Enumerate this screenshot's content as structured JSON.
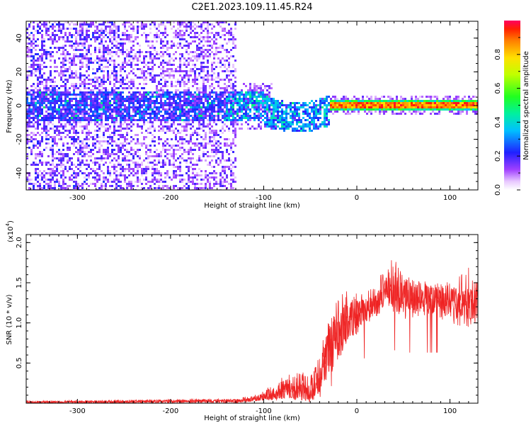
{
  "title": "C2E1.2023.109.11.45.R24",
  "colors": {
    "snr_line": "#ee2222",
    "axis": "#000000"
  },
  "chart_data": [
    {
      "type": "heatmap",
      "name": "spectrogram",
      "xlabel": "Height of straight line (km)",
      "ylabel": "Frequency (Hz)",
      "xlim": [
        -355,
        130
      ],
      "ylim": [
        -50,
        50
      ],
      "xticks": [
        -300,
        -200,
        -100,
        0,
        100
      ],
      "xtick_labels": [
        "-300",
        "-200",
        "-100",
        "0",
        "100"
      ],
      "yticks": [
        -40,
        -20,
        0,
        20,
        40
      ],
      "ytick_labels": [
        "-40",
        "-20",
        "0",
        "20",
        "40"
      ],
      "colorbar": {
        "label": "Normalized spectral amplitude",
        "range": [
          0,
          1
        ],
        "ticks": [
          0.0,
          0.2,
          0.4,
          0.6,
          0.8
        ],
        "tick_labels": [
          "0.0",
          "0.2",
          "0.4",
          "0.6",
          "0.8"
        ]
      },
      "regions": [
        {
          "description": "broad diffuse noise",
          "x_range": [
            -355,
            -130
          ],
          "freq_range": [
            -50,
            50
          ],
          "amplitude": 0.1
        },
        {
          "description": "noise band",
          "x_range": [
            -355,
            -50
          ],
          "freq_range": [
            -8,
            8
          ],
          "amplitude": 0.25
        },
        {
          "description": "signal transition",
          "x_range": [
            -130,
            -30
          ],
          "freq_range": [
            -10,
            6
          ],
          "amplitude": 0.4
        },
        {
          "description": "narrow strong signal",
          "x_range": [
            -30,
            130
          ],
          "freq_range": [
            -2,
            2
          ],
          "amplitude": 0.9
        }
      ]
    },
    {
      "type": "line",
      "name": "snr",
      "xlabel": "Height of straight line (km)",
      "ylabel": "SNR (10 * v/v)",
      "y_multiplier_label": "(x10",
      "y_multiplier_exp": "4",
      "xlim": [
        -355,
        130
      ],
      "ylim": [
        0,
        2.1
      ],
      "xticks": [
        -300,
        -200,
        -100,
        0,
        100
      ],
      "xtick_labels": [
        "-300",
        "-200",
        "-100",
        "0",
        "100"
      ],
      "yticks": [
        0.5,
        1.0,
        1.5,
        2.0
      ],
      "ytick_labels": [
        "0.5",
        "1.0",
        "1.5",
        "2.0"
      ],
      "series_envelope": {
        "x": [
          -355,
          -250,
          -150,
          -130,
          -110,
          -100,
          -80,
          -60,
          -50,
          -40,
          -30,
          -20,
          -10,
          0,
          10,
          20,
          25,
          30,
          40,
          50,
          60,
          70,
          80,
          90,
          100,
          110,
          120,
          130
        ],
        "low": [
          0.0,
          0.0,
          0.0,
          0.0,
          0.02,
          0.03,
          0.05,
          0.05,
          0.05,
          0.12,
          0.3,
          0.5,
          0.7,
          0.85,
          0.95,
          1.05,
          1.1,
          1.15,
          1.1,
          1.05,
          1.05,
          1.05,
          1.05,
          1.05,
          1.0,
          0.95,
          0.95,
          1.0
        ],
        "high": [
          0.03,
          0.04,
          0.05,
          0.05,
          0.1,
          0.15,
          0.35,
          0.4,
          0.35,
          0.6,
          1.1,
          1.3,
          1.45,
          1.4,
          1.4,
          1.45,
          1.6,
          1.7,
          1.85,
          1.6,
          1.55,
          1.55,
          1.55,
          1.5,
          1.55,
          1.6,
          1.7,
          1.55
        ],
        "mid": [
          0.01,
          0.02,
          0.03,
          0.03,
          0.05,
          0.07,
          0.15,
          0.15,
          0.12,
          0.3,
          0.65,
          0.85,
          1.0,
          1.1,
          1.15,
          1.2,
          1.3,
          1.45,
          1.4,
          1.35,
          1.3,
          1.3,
          1.3,
          1.3,
          1.28,
          1.25,
          1.25,
          1.3
        ]
      }
    }
  ]
}
